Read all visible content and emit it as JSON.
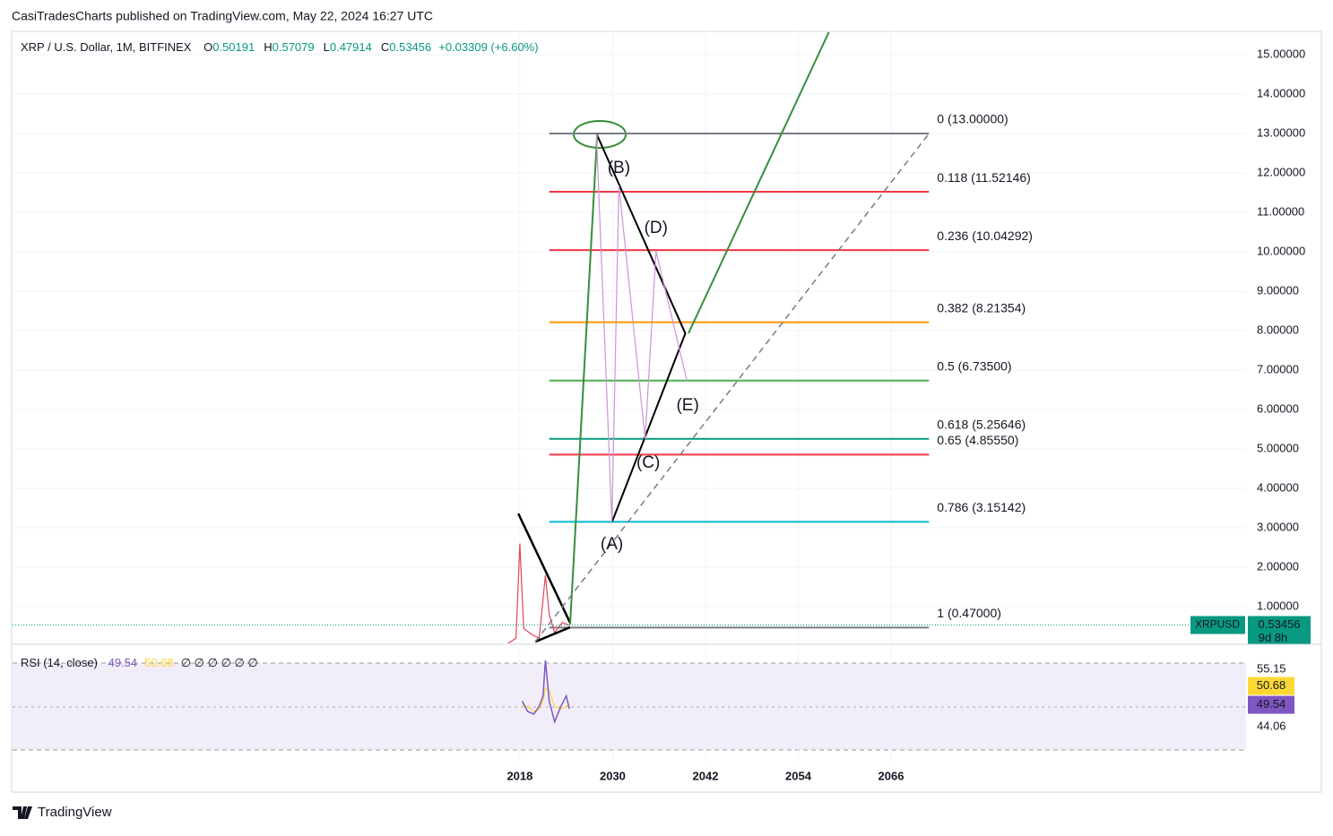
{
  "chart_data": {
    "type": "fib",
    "header": "CasiTradesCharts published on TradingView.com, May 22, 2024 16:27 UTC",
    "symbol": "XRP / U.S. Dollar, 1M, BITFINEX",
    "ohlc": [
      {
        "key": "O",
        "value": 0.50191
      },
      {
        "key": "H",
        "value": 0.57079
      },
      {
        "key": "L",
        "value": 0.47914
      },
      {
        "key": "C",
        "value": 0.53456
      }
    ],
    "change": "+0.03309 (+6.60%)",
    "xlim": [
      1952.4,
      2111.9
    ],
    "xticks": [
      2018,
      2030,
      2042,
      2054,
      2066
    ],
    "ylim": [
      0.07,
      15.59
    ],
    "yticks": [
      {
        "value": 1,
        "label": "1.00000"
      },
      {
        "value": 2,
        "label": "2.00000"
      },
      {
        "value": 3,
        "label": "3.00000"
      },
      {
        "value": 4,
        "label": "4.00000"
      },
      {
        "value": 5,
        "label": "5.00000"
      },
      {
        "value": 6,
        "label": "6.00000"
      },
      {
        "value": 7,
        "label": "7.00000"
      },
      {
        "value": 8,
        "label": "8.00000"
      },
      {
        "value": 9,
        "label": "9.00000"
      },
      {
        "value": 10,
        "label": "10.00000"
      },
      {
        "value": 11,
        "label": "11.00000"
      },
      {
        "value": 12,
        "label": "12.00000"
      },
      {
        "value": 13,
        "label": "13.00000"
      },
      {
        "value": 14,
        "label": "14.00000"
      },
      {
        "value": 15,
        "label": "15.00000"
      }
    ],
    "grid": true,
    "fib": {
      "x": [
        2021.8,
        2070.9
      ],
      "levels": [
        {
          "label": "0 (13.00000)",
          "value": 13,
          "color": "#787b86"
        },
        {
          "label": "0.118 (11.52146)",
          "value": 11.52146,
          "color": "#f23645"
        },
        {
          "label": "0.236 (10.04292)",
          "value": 10.04292,
          "color": "#f23645"
        },
        {
          "label": "0.382 (8.21354)",
          "value": 8.21354,
          "color": "#ff9800"
        },
        {
          "label": "0.5 (6.73500)",
          "value": 6.735,
          "color": "#4caf50"
        },
        {
          "label": "0.618 (5.25646)",
          "value": 5.25646,
          "color": "#089981"
        },
        {
          "label": "0.65 (4.85550)",
          "value": 4.8555,
          "color": "#f23645"
        },
        {
          "label": "0.786 (3.15142)",
          "value": 3.15142,
          "color": "#00bcd4"
        },
        {
          "label": "1 (0.47000)",
          "value": 0.47,
          "color": "#787b86"
        }
      ]
    },
    "price": {
      "name": "XRPUSD",
      "color": "#e0455a",
      "tag_color": "#089981",
      "x": [
        2014.5,
        2016,
        2017.5,
        2018.0,
        2018.5,
        2019.5,
        2020.5,
        2021.3,
        2021.8,
        2022.5,
        2023.5,
        2024.4
      ],
      "values": [
        0.01,
        0.006,
        0.2,
        2.6,
        0.45,
        0.3,
        0.2,
        1.8,
        0.8,
        0.35,
        0.6,
        0.53
      ],
      "last": 0.53456,
      "countdown": "9d 8h"
    },
    "drawings": [
      {
        "color": "#000000",
        "width": 2.5,
        "dash": false,
        "x": [
          2017.8,
          2024.5
        ],
        "values": [
          3.36,
          0.59
        ]
      },
      {
        "color": "#000000",
        "width": 2.5,
        "dash": false,
        "x": [
          2020.0,
          2024.5
        ],
        "values": [
          0.11,
          0.48
        ]
      },
      {
        "color": "#000000",
        "width": 2,
        "dash": false,
        "x": [
          2027.9,
          2039.4,
          2029.9
        ],
        "values": [
          13,
          7.93,
          3.14
        ]
      },
      {
        "color": "#388e3c",
        "width": 2,
        "dash": false,
        "x": [
          2024.5,
          2028.0
        ],
        "values": [
          0.55,
          12.98
        ]
      },
      {
        "color": "#388e3c",
        "width": 2,
        "dash": false,
        "x": [
          2039.8,
          2058.0
        ],
        "values": [
          7.93,
          15.59
        ]
      },
      {
        "color": "#787b86",
        "width": 1.5,
        "dash": true,
        "x": [
          2020.0,
          2070.9
        ],
        "values": [
          0.11,
          13
        ]
      },
      {
        "color": "#ce93d8",
        "width": 1.2,
        "dash": false,
        "x": [
          2027.9,
          2029.9,
          2030.8,
          2034.2,
          2035.6,
          2039.6
        ],
        "values": [
          13,
          3.14,
          11.68,
          5.25,
          10.02,
          6.73
        ]
      }
    ],
    "waves": [
      {
        "label": "(A)",
        "x": 2029.9,
        "value": 2.57
      },
      {
        "label": "(B)",
        "x": 2030.8,
        "value": 12.11
      },
      {
        "label": "(C)",
        "x": 2034.6,
        "value": 4.64
      },
      {
        "label": "(D)",
        "x": 2035.6,
        "value": 10.59
      },
      {
        "label": "(E)",
        "x": 2039.7,
        "value": 6.09
      }
    ],
    "rsi": {
      "label": "RSI (14, close)",
      "ylim": [
        32.1,
        59.83
      ],
      "yticks": [
        55.15,
        44.06
      ],
      "x": [
        2018.3,
        2019,
        2019.8,
        2020.5,
        2021,
        2021.3,
        2021.8,
        2022.5,
        2023.3,
        2024.0,
        2024.4
      ],
      "values": [
        49,
        47,
        46.5,
        48,
        50,
        56.9,
        49,
        45,
        48,
        50,
        47.5
      ],
      "ma": [
        48,
        48,
        47,
        47.5,
        49,
        51.5,
        51,
        48,
        47.5,
        48,
        48.5
      ],
      "color": "#7e57c2",
      "ma_color": "#fdd835",
      "last": 49.54,
      "ma_last": 50.68,
      "empty": "∅ ∅ ∅ ∅ ∅ ∅"
    },
    "brand": "TradingView"
  }
}
